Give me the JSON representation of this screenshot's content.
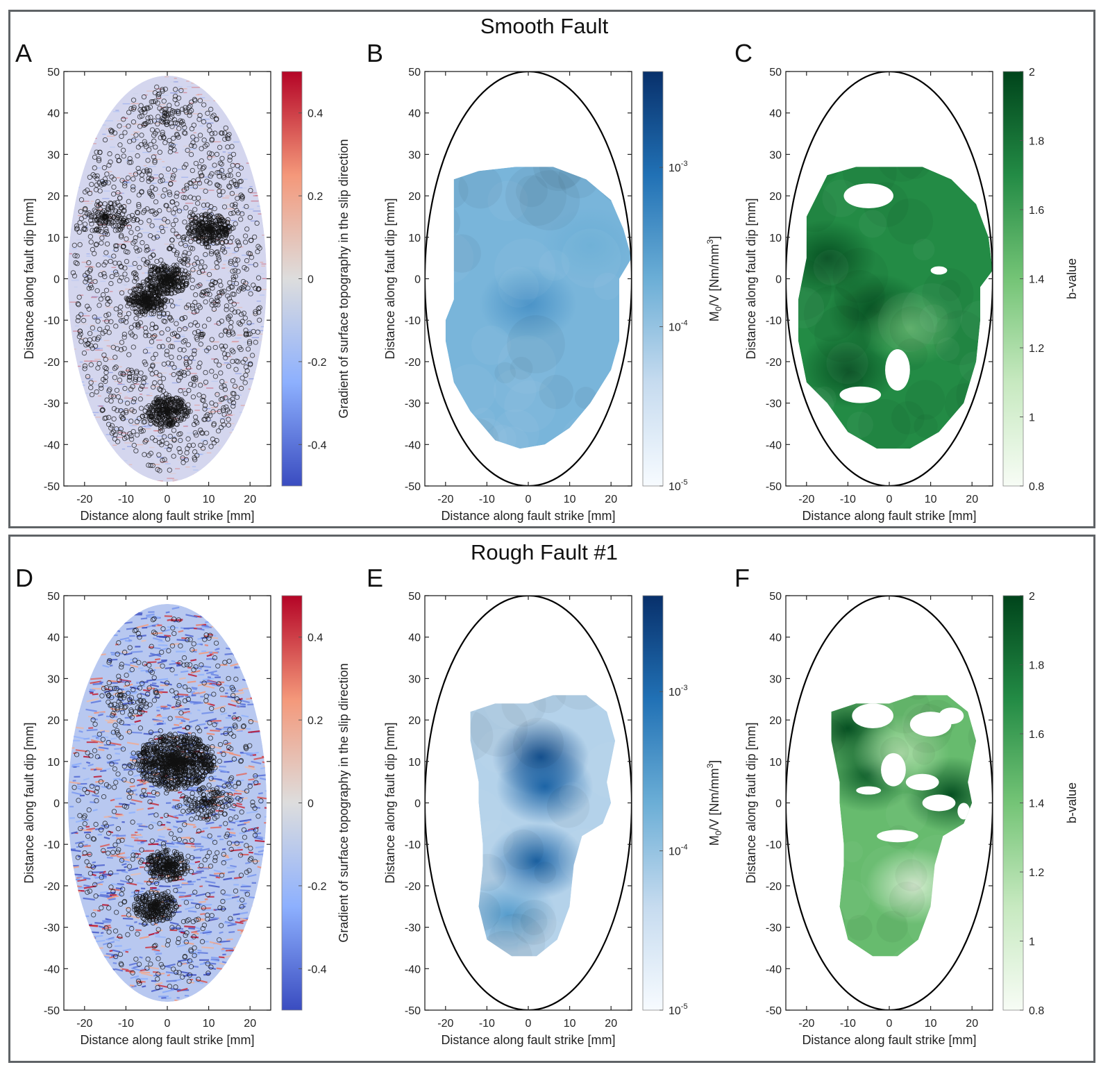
{
  "groups": [
    {
      "title": "Smooth Fault"
    },
    {
      "title": "Rough Fault #1"
    }
  ],
  "colors": {
    "axis": "#222222",
    "frame": "#5f6366",
    "gradient_cmap": [
      "#3a4cc0",
      "#8db0fe",
      "#dddddd",
      "#f4987a",
      "#b40426"
    ],
    "moment_cmap": [
      "#f7fbff",
      "#c6dbef",
      "#6baed6",
      "#2171b5",
      "#08306b"
    ],
    "bvalue_cmap": [
      "#f7fcf5",
      "#c7e9c0",
      "#74c476",
      "#238b45",
      "#00441b"
    ],
    "event_circle": "#111111"
  },
  "chart_data": [
    {
      "panel": "A",
      "group": "Smooth Fault",
      "type": "heatmap",
      "title": "",
      "xlabel": "Distance along fault strike [mm]",
      "ylabel": "Distance along fault dip [mm]",
      "xlim": [
        -25,
        25
      ],
      "ylim": [
        -50,
        50
      ],
      "xticks": [
        -20,
        -10,
        0,
        10,
        20
      ],
      "yticks": [
        -50,
        -40,
        -30,
        -20,
        -10,
        0,
        10,
        20,
        30,
        40,
        50
      ],
      "content": "surface topography gradient map within elliptical fault (semi-axes 24 x 49 mm) overlaid with black event circles; events distributed widely, densest near center",
      "ellipse": {
        "a": 24,
        "b": 49
      },
      "overlay": "event-circles",
      "event_density": [
        {
          "x": 0,
          "y": 0,
          "level": "high"
        },
        {
          "x": -5,
          "y": -5,
          "level": "high"
        },
        {
          "x": 0,
          "y": -32,
          "level": "high"
        },
        {
          "x": 10,
          "y": 12,
          "level": "high"
        },
        {
          "x": -15,
          "y": 15,
          "level": "medium"
        },
        {
          "x": 0,
          "y": 40,
          "level": "low"
        }
      ],
      "colorbar": {
        "label": "Gradient of surface topography in the slip direction",
        "scale": "linear",
        "range": [
          -0.5,
          0.5
        ],
        "ticks": [
          -0.4,
          -0.2,
          0,
          0.2,
          0.4
        ],
        "tick_labels": [
          "-0.4",
          "-0.2",
          "0",
          "0.2",
          "0.4"
        ],
        "cmap": "coolwarm"
      }
    },
    {
      "panel": "B",
      "group": "Smooth Fault",
      "type": "heatmap",
      "xlabel": "Distance along fault strike [mm]",
      "ylabel": "Distance along fault dip [mm]",
      "xlim": [
        -25,
        25
      ],
      "ylim": [
        -50,
        50
      ],
      "xticks": [
        -20,
        -10,
        0,
        10,
        20
      ],
      "yticks": [
        -50,
        -40,
        -30,
        -20,
        -10,
        0,
        10,
        20,
        30,
        40,
        50
      ],
      "ellipse": {
        "a": 25,
        "b": 50
      },
      "content": "moment density map; region spans x -20..25, y -41..27; highest near (0,-5)",
      "region_outline": [
        [
          -18,
          24
        ],
        [
          -12,
          26
        ],
        [
          -3,
          27
        ],
        [
          6,
          27
        ],
        [
          14,
          24
        ],
        [
          20,
          19
        ],
        [
          23,
          12
        ],
        [
          25,
          5
        ],
        [
          22,
          0
        ],
        [
          22,
          -5
        ],
        [
          22,
          -15
        ],
        [
          20,
          -22
        ],
        [
          15,
          -30
        ],
        [
          10,
          -36
        ],
        [
          4,
          -40
        ],
        [
          -2,
          -41
        ],
        [
          -8,
          -39
        ],
        [
          -14,
          -32
        ],
        [
          -18,
          -25
        ],
        [
          -20,
          -15
        ],
        [
          -20,
          -10
        ],
        [
          -18,
          -5
        ],
        [
          -18,
          0
        ],
        [
          -18,
          10
        ],
        [
          -18,
          18
        ]
      ],
      "hotspots": [
        {
          "x": 0,
          "y": -6,
          "value": 0.0004
        },
        {
          "x": 15,
          "y": 8,
          "value": 0.0002
        }
      ],
      "colorbar": {
        "label": "M0/V [Nm/mm3]",
        "scale": "log",
        "range": [
          1e-05,
          0.004
        ],
        "ticks": [
          1e-05,
          0.0001,
          0.001
        ],
        "tick_labels": [
          "10",
          "10",
          "10"
        ],
        "tick_exponents": [
          "-5",
          "-4",
          "-3"
        ],
        "cmap": "Blues"
      }
    },
    {
      "panel": "C",
      "group": "Smooth Fault",
      "type": "heatmap",
      "xlabel": "Distance along fault strike [mm]",
      "ylabel": "Distance along fault dip [mm]",
      "xlim": [
        -25,
        25
      ],
      "ylim": [
        -50,
        50
      ],
      "xticks": [
        -20,
        -10,
        0,
        10,
        20
      ],
      "yticks": [
        -50,
        -40,
        -30,
        -20,
        -10,
        0,
        10,
        20,
        30,
        40,
        50
      ],
      "ellipse": {
        "a": 25,
        "b": 50
      },
      "content": "b-value map; mostly 1.5-2.0 with white gaps near (-5,20) and (2,-22)",
      "region_outline": [
        [
          -15,
          25
        ],
        [
          -8,
          27
        ],
        [
          0,
          27
        ],
        [
          8,
          27
        ],
        [
          15,
          24
        ],
        [
          21,
          18
        ],
        [
          24,
          10
        ],
        [
          25,
          2
        ],
        [
          22,
          -2
        ],
        [
          22,
          -10
        ],
        [
          21,
          -20
        ],
        [
          18,
          -30
        ],
        [
          12,
          -37
        ],
        [
          5,
          -41
        ],
        [
          -3,
          -41
        ],
        [
          -10,
          -37
        ],
        [
          -15,
          -30
        ],
        [
          -20,
          -25
        ],
        [
          -22,
          -15
        ],
        [
          -22,
          -5
        ],
        [
          -20,
          5
        ],
        [
          -20,
          15
        ]
      ],
      "hotspots": [
        {
          "x": -15,
          "y": 5,
          "value": 1.95
        },
        {
          "x": -3,
          "y": -8,
          "value": 1.95
        },
        {
          "x": -10,
          "y": -22,
          "value": 1.95
        },
        {
          "x": 5,
          "y": -12,
          "value": 1.5
        }
      ],
      "colorbar": {
        "label": "b-value",
        "scale": "linear",
        "range": [
          0.8,
          2
        ],
        "ticks": [
          0.8,
          1,
          1.2,
          1.4,
          1.6,
          1.8,
          2
        ],
        "tick_labels": [
          "0.8",
          "1",
          "1.2",
          "1.4",
          "1.6",
          "1.8",
          "2"
        ],
        "cmap": "Greens"
      }
    },
    {
      "panel": "D",
      "group": "Rough Fault #1",
      "type": "heatmap",
      "xlabel": "Distance along fault strike [mm]",
      "ylabel": "Distance along fault dip [mm]",
      "xlim": [
        -25,
        25
      ],
      "ylim": [
        -50,
        50
      ],
      "xticks": [
        -20,
        -10,
        0,
        10,
        20
      ],
      "yticks": [
        -50,
        -40,
        -30,
        -20,
        -10,
        0,
        10,
        20,
        30,
        40,
        50
      ],
      "ellipse": {
        "a": 24,
        "b": 48
      },
      "overlay": "event-circles",
      "content": "topography gradient map (strong blue/red streaks) with dense event clusters",
      "event_density": [
        {
          "x": 2,
          "y": 10,
          "level": "very high"
        },
        {
          "x": 0,
          "y": -15,
          "level": "high"
        },
        {
          "x": -3,
          "y": -25,
          "level": "high"
        },
        {
          "x": 10,
          "y": 0,
          "level": "medium"
        },
        {
          "x": -10,
          "y": 25,
          "level": "low"
        }
      ],
      "colorbar": {
        "label": "Gradient of surface topography in the slip direction",
        "scale": "linear",
        "range": [
          -0.5,
          0.5
        ],
        "ticks": [
          -0.4,
          -0.2,
          0,
          0.2,
          0.4
        ],
        "tick_labels": [
          "-0.4",
          "-0.2",
          "0",
          "0.2",
          "0.4"
        ],
        "cmap": "coolwarm"
      }
    },
    {
      "panel": "E",
      "group": "Rough Fault #1",
      "type": "heatmap",
      "xlabel": "Distance along fault strike [mm]",
      "ylabel": "Distance along fault dip [mm]",
      "xlim": [
        -25,
        25
      ],
      "ylim": [
        -50,
        50
      ],
      "xticks": [
        -20,
        -10,
        0,
        10,
        20
      ],
      "yticks": [
        -50,
        -40,
        -30,
        -20,
        -10,
        0,
        10,
        20,
        30,
        40,
        50
      ],
      "ellipse": {
        "a": 25,
        "b": 50
      },
      "content": "moment density map; hotspots near (3,11), (4,4), (2,-14)",
      "region_outline": [
        [
          -14,
          22
        ],
        [
          -8,
          24
        ],
        [
          0,
          24
        ],
        [
          6,
          26
        ],
        [
          14,
          26
        ],
        [
          19,
          22
        ],
        [
          21,
          15
        ],
        [
          20,
          10
        ],
        [
          19,
          5
        ],
        [
          20,
          0
        ],
        [
          18,
          -5
        ],
        [
          13,
          -8
        ],
        [
          11,
          -15
        ],
        [
          10,
          -25
        ],
        [
          7,
          -33
        ],
        [
          2,
          -37
        ],
        [
          -4,
          -37
        ],
        [
          -10,
          -33
        ],
        [
          -12,
          -25
        ],
        [
          -11,
          -15
        ],
        [
          -11,
          -10
        ],
        [
          -12,
          0
        ],
        [
          -12,
          5
        ],
        [
          -14,
          15
        ]
      ],
      "hotspots": [
        {
          "x": 3,
          "y": 11,
          "value": 0.002
        },
        {
          "x": 4,
          "y": 4,
          "value": 0.0012
        },
        {
          "x": 2,
          "y": -14,
          "value": 0.0012
        },
        {
          "x": -5,
          "y": -27,
          "value": 0.0003
        }
      ],
      "colorbar": {
        "label": "M0/V [Nm/mm3]",
        "scale": "log",
        "range": [
          1e-05,
          0.004
        ],
        "ticks": [
          1e-05,
          0.0001,
          0.001
        ],
        "tick_labels": [
          "10",
          "10",
          "10"
        ],
        "tick_exponents": [
          "-5",
          "-4",
          "-3"
        ],
        "cmap": "Blues"
      }
    },
    {
      "panel": "F",
      "group": "Rough Fault #1",
      "type": "heatmap",
      "xlabel": "Distance along fault strike [mm]",
      "ylabel": "Distance along fault dip [mm]",
      "xlim": [
        -25,
        25
      ],
      "ylim": [
        -50,
        50
      ],
      "xticks": [
        -20,
        -10,
        0,
        10,
        20
      ],
      "yticks": [
        -50,
        -40,
        -30,
        -20,
        -10,
        0,
        10,
        20,
        30,
        40,
        50
      ],
      "ellipse": {
        "a": 25,
        "b": 50
      },
      "content": "b-value map; high b (~2) at top-left and right; low b (~1) near (5,-20); white gaps around (0,5) and (10,2)",
      "region_outline": [
        [
          -14,
          22
        ],
        [
          -8,
          24
        ],
        [
          0,
          24
        ],
        [
          6,
          26
        ],
        [
          14,
          26
        ],
        [
          19,
          22
        ],
        [
          21,
          15
        ],
        [
          20,
          10
        ],
        [
          19,
          5
        ],
        [
          20,
          0
        ],
        [
          18,
          -5
        ],
        [
          13,
          -8
        ],
        [
          11,
          -15
        ],
        [
          10,
          -25
        ],
        [
          7,
          -33
        ],
        [
          2,
          -37
        ],
        [
          -4,
          -37
        ],
        [
          -10,
          -33
        ],
        [
          -12,
          -25
        ],
        [
          -11,
          -15
        ],
        [
          -11,
          -10
        ],
        [
          -12,
          0
        ],
        [
          -12,
          5
        ],
        [
          -14,
          15
        ]
      ],
      "hotspots": [
        {
          "x": -10,
          "y": 18,
          "value": 1.95
        },
        {
          "x": 15,
          "y": 2,
          "value": 1.95
        },
        {
          "x": -5,
          "y": 7,
          "value": 1.9
        },
        {
          "x": 6,
          "y": -20,
          "value": 1.0
        },
        {
          "x": 3,
          "y": 12,
          "value": 1.2
        }
      ],
      "colorbar": {
        "label": "b-value",
        "scale": "linear",
        "range": [
          0.8,
          2
        ],
        "ticks": [
          0.8,
          1,
          1.2,
          1.4,
          1.6,
          1.8,
          2
        ],
        "tick_labels": [
          "0.8",
          "1",
          "1.2",
          "1.4",
          "1.6",
          "1.8",
          "2"
        ],
        "cmap": "Greens"
      }
    }
  ]
}
